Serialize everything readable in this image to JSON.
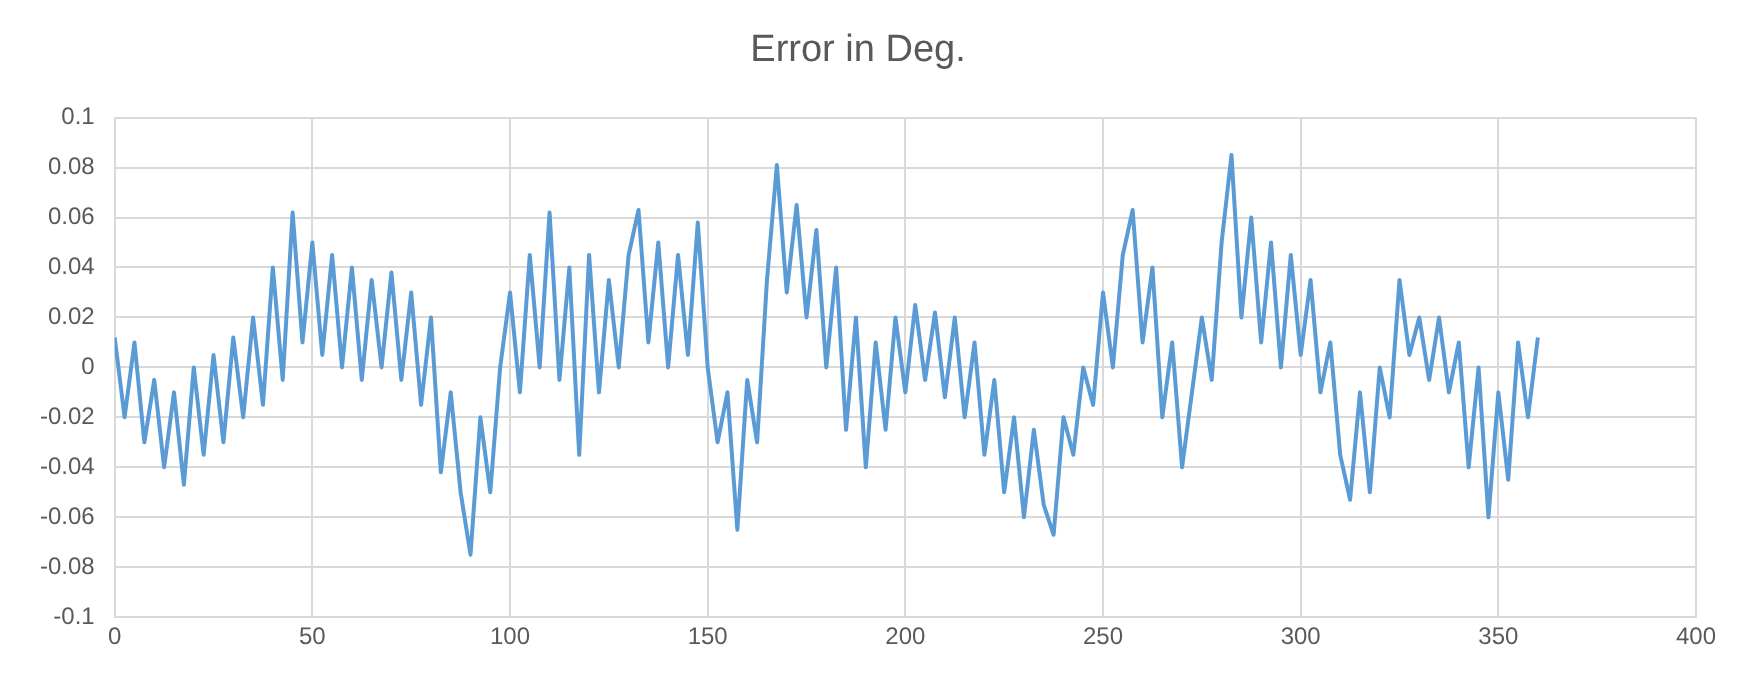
{
  "chart_data": {
    "type": "line",
    "title": "Error in Deg.",
    "x": [
      0,
      2.5,
      5,
      7.5,
      10,
      12.5,
      15,
      17.5,
      20,
      22.5,
      25,
      27.5,
      30,
      32.5,
      35,
      37.5,
      40,
      42.5,
      45,
      47.5,
      50,
      52.5,
      55,
      57.5,
      60,
      62.5,
      65,
      67.5,
      70,
      72.5,
      75,
      77.5,
      80,
      82.5,
      85,
      87.5,
      90,
      92.5,
      95,
      97.5,
      100,
      102.5,
      105,
      107.5,
      110,
      112.5,
      115,
      117.5,
      120,
      122.5,
      125,
      127.5,
      130,
      132.5,
      135,
      137.5,
      140,
      142.5,
      145,
      147.5,
      150,
      152.5,
      155,
      157.5,
      160,
      162.5,
      165,
      167.5,
      170,
      172.5,
      175,
      177.5,
      180,
      182.5,
      185,
      187.5,
      190,
      192.5,
      195,
      197.5,
      200,
      202.5,
      205,
      207.5,
      210,
      212.5,
      215,
      217.5,
      220,
      222.5,
      225,
      227.5,
      230,
      232.5,
      235,
      237.5,
      240,
      242.5,
      245,
      247.5,
      250,
      252.5,
      255,
      257.5,
      260,
      262.5,
      265,
      267.5,
      270,
      272.5,
      275,
      277.5,
      280,
      282.5,
      285,
      287.5,
      290,
      292.5,
      295,
      297.5,
      300,
      302.5,
      305,
      307.5,
      310,
      312.5,
      315,
      317.5,
      320,
      322.5,
      325,
      327.5,
      330,
      332.5,
      335,
      337.5,
      340,
      342.5,
      345,
      347.5,
      350,
      352.5,
      355,
      357.5,
      360
    ],
    "series": [
      {
        "color": "#5b9bd5",
        "values": [
          0.012,
          -0.02,
          0.01,
          -0.03,
          -0.005,
          -0.04,
          -0.01,
          -0.047,
          0.0,
          -0.035,
          0.005,
          -0.03,
          0.012,
          -0.02,
          0.02,
          -0.015,
          0.04,
          -0.005,
          0.062,
          0.01,
          0.05,
          0.005,
          0.045,
          0.0,
          0.04,
          -0.005,
          0.035,
          0.0,
          0.038,
          -0.005,
          0.03,
          -0.015,
          0.02,
          -0.042,
          -0.01,
          -0.05,
          -0.075,
          -0.02,
          -0.05,
          0.0,
          0.03,
          -0.01,
          0.045,
          0.0,
          0.062,
          -0.005,
          0.04,
          -0.035,
          0.045,
          -0.01,
          0.035,
          0.0,
          0.045,
          0.063,
          0.01,
          0.05,
          0.0,
          0.045,
          0.005,
          0.058,
          0.0,
          -0.03,
          -0.01,
          -0.065,
          -0.005,
          -0.03,
          0.035,
          0.081,
          0.03,
          0.065,
          0.02,
          0.055,
          0.0,
          0.04,
          -0.025,
          0.02,
          -0.04,
          0.01,
          -0.025,
          0.02,
          -0.01,
          0.025,
          -0.005,
          0.022,
          -0.012,
          0.02,
          -0.02,
          0.01,
          -0.035,
          -0.005,
          -0.05,
          -0.02,
          -0.06,
          -0.025,
          -0.055,
          -0.067,
          -0.02,
          -0.035,
          0.0,
          -0.015,
          0.03,
          0.0,
          0.045,
          0.063,
          0.01,
          0.04,
          -0.02,
          0.01,
          -0.04,
          -0.01,
          0.02,
          -0.005,
          0.05,
          0.085,
          0.02,
          0.06,
          0.01,
          0.05,
          0.0,
          0.045,
          0.005,
          0.035,
          -0.01,
          0.01,
          -0.035,
          -0.053,
          -0.01,
          -0.05,
          0.0,
          -0.02,
          0.035,
          0.005,
          0.02,
          -0.005,
          0.02,
          -0.01,
          0.01,
          -0.04,
          0.0,
          -0.06,
          -0.01,
          -0.045,
          0.01,
          -0.02,
          0.012
        ]
      }
    ],
    "xlim": [
      0,
      400
    ],
    "xticks": [
      0,
      50,
      100,
      150,
      200,
      250,
      300,
      350,
      400
    ],
    "ylim": [
      -0.1,
      0.1
    ],
    "yticks": [
      -0.1,
      -0.08,
      -0.06,
      -0.04,
      -0.02,
      0,
      0.02,
      0.04,
      0.06,
      0.08,
      0.1
    ],
    "grid": true,
    "marker": "none",
    "line_style": "solid"
  }
}
